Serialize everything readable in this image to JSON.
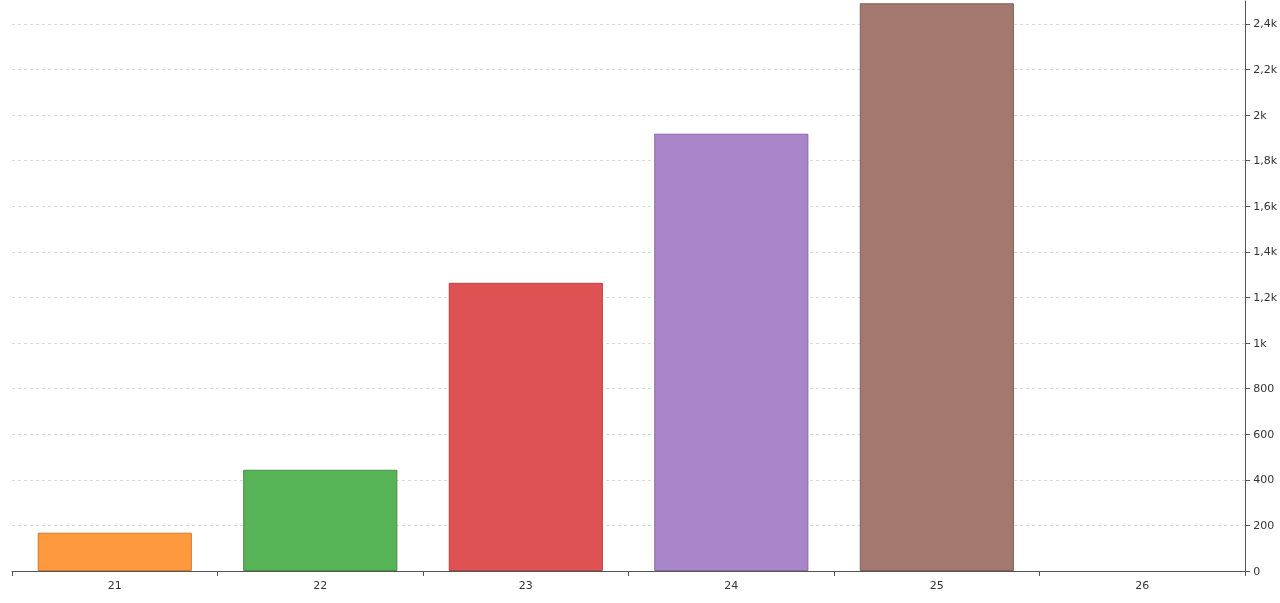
{
  "chart_data": {
    "type": "bar",
    "categories": [
      "21",
      "22",
      "23",
      "24",
      "25",
      "26"
    ],
    "values": [
      168,
      444,
      1264,
      1918,
      2490,
      null
    ],
    "colors": [
      "#ff993e",
      "#56b356",
      "#df5253",
      "#a985ca",
      "#a3786f",
      null
    ],
    "ylim": [
      0,
      2500
    ],
    "yticks": [
      0,
      200,
      400,
      600,
      800,
      {
        "value": 1000,
        "label": "1k"
      },
      {
        "value": 1200,
        "label": "1,2k"
      },
      {
        "value": 1400,
        "label": "1,4k"
      },
      {
        "value": 1600,
        "label": "1,6k"
      },
      {
        "value": 1800,
        "label": "1,8k"
      },
      {
        "value": 2000,
        "label": "2k"
      },
      {
        "value": 2200,
        "label": "2,2k"
      },
      {
        "value": 2400,
        "label": "2,4k"
      }
    ],
    "grid": "y"
  }
}
